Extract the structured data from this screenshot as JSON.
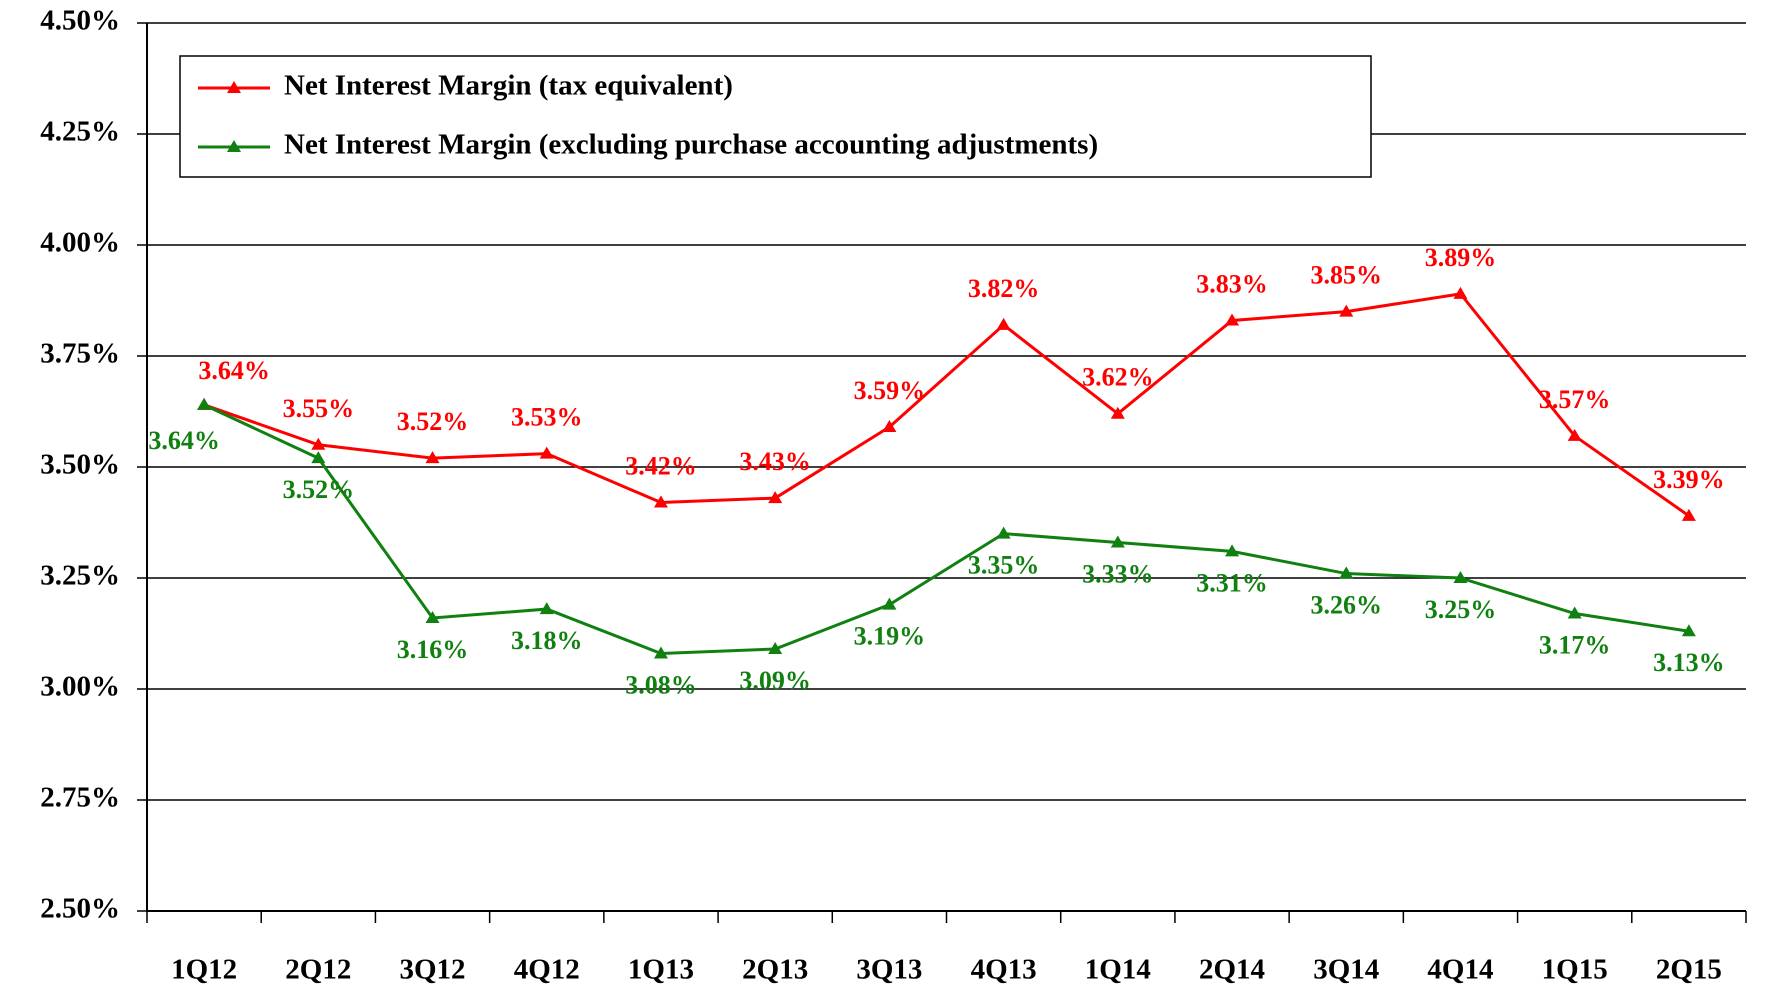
{
  "chart_data": {
    "type": "line",
    "categories": [
      "1Q12",
      "2Q12",
      "3Q12",
      "4Q12",
      "1Q13",
      "2Q13",
      "3Q13",
      "4Q13",
      "1Q14",
      "2Q14",
      "3Q14",
      "4Q14",
      "1Q15",
      "2Q15"
    ],
    "series": [
      {
        "name": "Net Interest Margin (tax equivalent)",
        "color": "#ff0000",
        "values": [
          3.64,
          3.55,
          3.52,
          3.53,
          3.42,
          3.43,
          3.59,
          3.82,
          3.62,
          3.83,
          3.85,
          3.89,
          3.57,
          3.39
        ],
        "value_labels": [
          "3.64%",
          "3.55%",
          "3.52%",
          "3.53%",
          "3.42%",
          "3.43%",
          "3.59%",
          "3.82%",
          "3.62%",
          "3.83%",
          "3.85%",
          "3.89%",
          "3.57%",
          "3.39%"
        ]
      },
      {
        "name": "Net Interest Margin (excluding purchase accounting adjustments)",
        "color": "#108010",
        "values": [
          3.64,
          3.52,
          3.16,
          3.18,
          3.08,
          3.09,
          3.19,
          3.35,
          3.33,
          3.31,
          3.26,
          3.25,
          3.17,
          3.13
        ],
        "value_labels": [
          "3.64%",
          "3.52%",
          "3.16%",
          "3.18%",
          "3.08%",
          "3.09%",
          "3.19%",
          "3.35%",
          "3.33%",
          "3.31%",
          "3.26%",
          "3.25%",
          "3.17%",
          "3.13%"
        ]
      }
    ],
    "ylim": [
      2.5,
      4.5
    ],
    "yticks": [
      {
        "value": 2.5,
        "label": "2.50%"
      },
      {
        "value": 2.75,
        "label": "2.75%"
      },
      {
        "value": 3.0,
        "label": "3.00%"
      },
      {
        "value": 3.25,
        "label": "3.25%"
      },
      {
        "value": 3.5,
        "label": "3.50%"
      },
      {
        "value": 3.75,
        "label": "3.75%"
      },
      {
        "value": 4.0,
        "label": "4.00%"
      },
      {
        "value": 4.25,
        "label": "4.25%"
      },
      {
        "value": 4.5,
        "label": "4.50%"
      }
    ],
    "grid": true,
    "legend": "upper left"
  }
}
